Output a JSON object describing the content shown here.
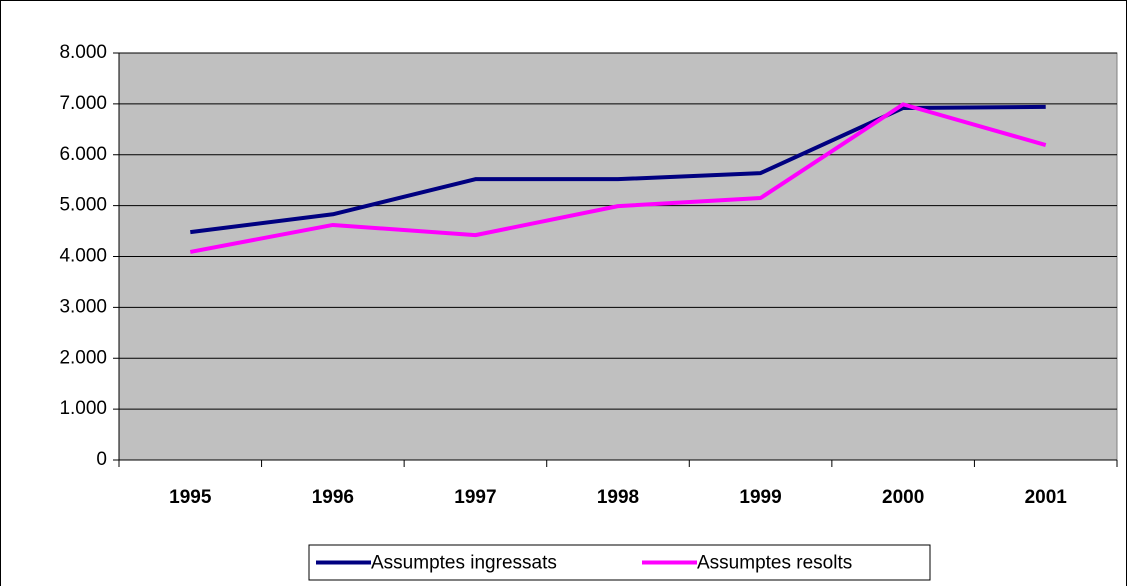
{
  "chart_data": {
    "type": "line",
    "categories": [
      "1995",
      "1996",
      "1997",
      "1998",
      "1999",
      "2000",
      "2001"
    ],
    "series": [
      {
        "name": "Assumptes ingressats",
        "color": "#000080",
        "values": [
          4480,
          4830,
          5520,
          5520,
          5640,
          6920,
          6940
        ]
      },
      {
        "name": "Assumptes resolts",
        "color": "#ff00ff",
        "values": [
          4090,
          4620,
          4420,
          4990,
          5150,
          6990,
          6190
        ]
      }
    ],
    "ylim": [
      0,
      8000
    ],
    "yticks": [
      0,
      {
        "value": 1000,
        "label": "1.000"
      },
      {
        "value": 2000,
        "label": "2.000"
      },
      {
        "value": 3000,
        "label": "3.000"
      },
      {
        "value": 4000,
        "label": "4.000"
      },
      {
        "value": 5000,
        "label": "5.000"
      },
      {
        "value": 6000,
        "label": "6.000"
      },
      {
        "value": 7000,
        "label": "7.000"
      },
      {
        "value": 8000,
        "label": "8.000"
      }
    ],
    "grid": true,
    "plot_background": "#c0c0c0",
    "legend": "bottom"
  }
}
